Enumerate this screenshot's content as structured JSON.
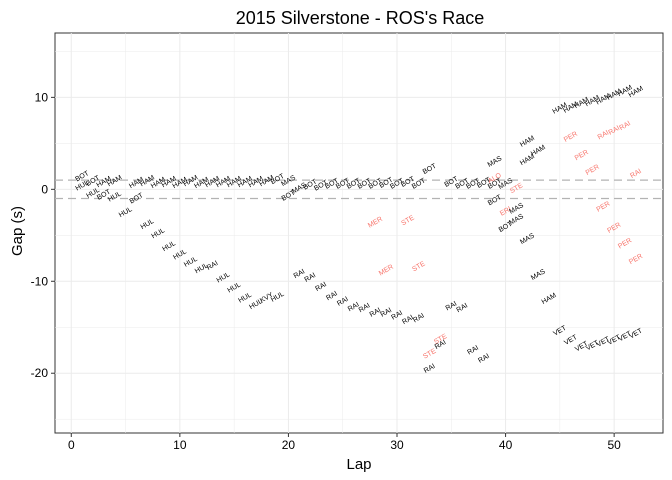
{
  "chart_data": {
    "type": "scatter",
    "title": "2015 Silverstone - ROS's Race",
    "xlabel": "Lap",
    "ylabel": "Gap (s)",
    "xlim": [
      -1.5,
      54.5
    ],
    "ylim": [
      -26.5,
      17
    ],
    "xticks": [
      0,
      10,
      20,
      30,
      40,
      50
    ],
    "yticks": [
      -20,
      -10,
      0,
      10
    ],
    "grid": true,
    "reference_lines": [
      1,
      -1
    ],
    "colors": {
      "normal": "#000000",
      "highlight": "#f8766d",
      "reference": "#b3b3b3",
      "grid": "#ebebeb"
    },
    "points": [
      {
        "x": 1,
        "y": 1.4,
        "label": "BOT",
        "highlight": false
      },
      {
        "x": 1,
        "y": 0.4,
        "label": "HUL",
        "highlight": false
      },
      {
        "x": 2,
        "y": 0.9,
        "label": "BOT",
        "highlight": false
      },
      {
        "x": 2,
        "y": -0.4,
        "label": "HUL",
        "highlight": false
      },
      {
        "x": 3,
        "y": 0.8,
        "label": "HAM",
        "highlight": false
      },
      {
        "x": 3,
        "y": -0.6,
        "label": "BOT",
        "highlight": false
      },
      {
        "x": 4,
        "y": 0.9,
        "label": "HAM",
        "highlight": false
      },
      {
        "x": 4,
        "y": -0.8,
        "label": "HUL",
        "highlight": false
      },
      {
        "x": 5,
        "y": -2.5,
        "label": "HUL",
        "highlight": false
      },
      {
        "x": 6,
        "y": 0.7,
        "label": "HAM",
        "highlight": false
      },
      {
        "x": 6,
        "y": -1,
        "label": "BOT",
        "highlight": false
      },
      {
        "x": 7,
        "y": 0.9,
        "label": "HAM",
        "highlight": false
      },
      {
        "x": 7,
        "y": -3.8,
        "label": "HUL",
        "highlight": false
      },
      {
        "x": 8,
        "y": 0.7,
        "label": "HAM",
        "highlight": false
      },
      {
        "x": 8,
        "y": -4.8,
        "label": "HUL",
        "highlight": false
      },
      {
        "x": 9,
        "y": 0.8,
        "label": "HAM",
        "highlight": false
      },
      {
        "x": 9,
        "y": -6.2,
        "label": "HUL",
        "highlight": false
      },
      {
        "x": 10,
        "y": 0.7,
        "label": "HAM",
        "highlight": false
      },
      {
        "x": 10,
        "y": -7.1,
        "label": "HUL",
        "highlight": false
      },
      {
        "x": 11,
        "y": 0.9,
        "label": "HAM",
        "highlight": false
      },
      {
        "x": 11,
        "y": -7.9,
        "label": "HUL",
        "highlight": false
      },
      {
        "x": 12,
        "y": 0.7,
        "label": "HAM",
        "highlight": false
      },
      {
        "x": 12,
        "y": -8.6,
        "label": "HUL",
        "highlight": false
      },
      {
        "x": 13,
        "y": 0.8,
        "label": "HAM",
        "highlight": false
      },
      {
        "x": 13,
        "y": -8.3,
        "label": "RAI",
        "highlight": false
      },
      {
        "x": 14,
        "y": 0.8,
        "label": "HAM",
        "highlight": false
      },
      {
        "x": 14,
        "y": -9.6,
        "label": "HUL",
        "highlight": false
      },
      {
        "x": 15,
        "y": 0.8,
        "label": "HAM",
        "highlight": false
      },
      {
        "x": 15,
        "y": -10.7,
        "label": "HUL",
        "highlight": false
      },
      {
        "x": 16,
        "y": 0.8,
        "label": "HAM",
        "highlight": false
      },
      {
        "x": 16,
        "y": -11.8,
        "label": "HUL",
        "highlight": false
      },
      {
        "x": 17,
        "y": 0.8,
        "label": "HAM",
        "highlight": false
      },
      {
        "x": 17,
        "y": -12.5,
        "label": "HUL",
        "highlight": false
      },
      {
        "x": 18,
        "y": 0.9,
        "label": "HAM",
        "highlight": false
      },
      {
        "x": 18,
        "y": -11.8,
        "label": "KVY",
        "highlight": false
      },
      {
        "x": 19,
        "y": 1.1,
        "label": "BOT",
        "highlight": false
      },
      {
        "x": 19,
        "y": -11.7,
        "label": "HUL",
        "highlight": false
      },
      {
        "x": 20,
        "y": 0.9,
        "label": "MAS",
        "highlight": false
      },
      {
        "x": 20,
        "y": -0.7,
        "label": "BOT",
        "highlight": false
      },
      {
        "x": 21,
        "y": 0.1,
        "label": "MAS",
        "highlight": false
      },
      {
        "x": 21,
        "y": -9.2,
        "label": "RAI",
        "highlight": false
      },
      {
        "x": 22,
        "y": 0.5,
        "label": "BOT",
        "highlight": false
      },
      {
        "x": 22,
        "y": -9.6,
        "label": "RAI",
        "highlight": false
      },
      {
        "x": 23,
        "y": 0.4,
        "label": "BOT",
        "highlight": false
      },
      {
        "x": 23,
        "y": -10.6,
        "label": "RAI",
        "highlight": false
      },
      {
        "x": 24,
        "y": 0.6,
        "label": "BOT",
        "highlight": false
      },
      {
        "x": 24,
        "y": -11.6,
        "label": "RAI",
        "highlight": false
      },
      {
        "x": 25,
        "y": 0.6,
        "label": "BOT",
        "highlight": false
      },
      {
        "x": 25,
        "y": -12.2,
        "label": "RAI",
        "highlight": false
      },
      {
        "x": 26,
        "y": 0.6,
        "label": "BOT",
        "highlight": false
      },
      {
        "x": 26,
        "y": -12.8,
        "label": "RAI",
        "highlight": false
      },
      {
        "x": 27,
        "y": 0.6,
        "label": "BOT",
        "highlight": false
      },
      {
        "x": 27,
        "y": -12.9,
        "label": "RAI",
        "highlight": false
      },
      {
        "x": 28,
        "y": 0.6,
        "label": "BOT",
        "highlight": false
      },
      {
        "x": 28,
        "y": -3.6,
        "label": "MER",
        "highlight": true
      },
      {
        "x": 28,
        "y": -13.4,
        "label": "RAI",
        "highlight": false
      },
      {
        "x": 29,
        "y": 0.7,
        "label": "BOT",
        "highlight": false
      },
      {
        "x": 29,
        "y": -8.8,
        "label": "MER",
        "highlight": true
      },
      {
        "x": 29,
        "y": -13.4,
        "label": "RAI",
        "highlight": false
      },
      {
        "x": 30,
        "y": 0.6,
        "label": "BOT",
        "highlight": false
      },
      {
        "x": 30,
        "y": -13.7,
        "label": "RAI",
        "highlight": false
      },
      {
        "x": 31,
        "y": 0.8,
        "label": "BOT",
        "highlight": false
      },
      {
        "x": 31,
        "y": -3.4,
        "label": "STE",
        "highlight": true
      },
      {
        "x": 31,
        "y": -14.2,
        "label": "RAI",
        "highlight": false
      },
      {
        "x": 32,
        "y": 0.6,
        "label": "BOT",
        "highlight": false
      },
      {
        "x": 32,
        "y": -8.4,
        "label": "STE",
        "highlight": true
      },
      {
        "x": 32,
        "y": -14,
        "label": "RAI",
        "highlight": false
      },
      {
        "x": 33,
        "y": 2.2,
        "label": "BOT",
        "highlight": false
      },
      {
        "x": 33,
        "y": -17.9,
        "label": "STE",
        "highlight": true
      },
      {
        "x": 33,
        "y": -19.5,
        "label": "RAI",
        "highlight": false
      },
      {
        "x": 34,
        "y": -16.3,
        "label": "STE",
        "highlight": true
      },
      {
        "x": 34,
        "y": -16.9,
        "label": "RAI",
        "highlight": false
      },
      {
        "x": 35,
        "y": 0.8,
        "label": "BOT",
        "highlight": false
      },
      {
        "x": 35,
        "y": -12.7,
        "label": "RAI",
        "highlight": false
      },
      {
        "x": 36,
        "y": 0.6,
        "label": "BOT",
        "highlight": false
      },
      {
        "x": 36,
        "y": -12.9,
        "label": "RAI",
        "highlight": false
      },
      {
        "x": 37,
        "y": 0.6,
        "label": "BOT",
        "highlight": false
      },
      {
        "x": 37,
        "y": -17.5,
        "label": "RAI",
        "highlight": false
      },
      {
        "x": 38,
        "y": 0.7,
        "label": "BOT",
        "highlight": false
      },
      {
        "x": 38,
        "y": -18.4,
        "label": "RAI",
        "highlight": false
      },
      {
        "x": 39,
        "y": 3,
        "label": "MAS",
        "highlight": false
      },
      {
        "x": 39,
        "y": 1.2,
        "label": "ALO",
        "highlight": true
      },
      {
        "x": 39,
        "y": 0.6,
        "label": "BOT",
        "highlight": false
      },
      {
        "x": 39,
        "y": -1.2,
        "label": "BOT",
        "highlight": false
      },
      {
        "x": 40,
        "y": 0.6,
        "label": "MAS",
        "highlight": false
      },
      {
        "x": 40,
        "y": -2.4,
        "label": "ERI",
        "highlight": true
      },
      {
        "x": 40,
        "y": -4.1,
        "label": "BOT",
        "highlight": false
      },
      {
        "x": 41,
        "y": 0.1,
        "label": "STE",
        "highlight": true
      },
      {
        "x": 41,
        "y": -2.1,
        "label": "MAS",
        "highlight": false
      },
      {
        "x": 41,
        "y": -3.3,
        "label": "MAS",
        "highlight": false
      },
      {
        "x": 42,
        "y": 5.2,
        "label": "HAM",
        "highlight": false
      },
      {
        "x": 42,
        "y": 3.2,
        "label": "HAM",
        "highlight": false
      },
      {
        "x": 42,
        "y": -5.4,
        "label": "MAS",
        "highlight": false
      },
      {
        "x": 43,
        "y": 4.2,
        "label": "HAM",
        "highlight": false
      },
      {
        "x": 43,
        "y": -9.3,
        "label": "MAS",
        "highlight": false
      },
      {
        "x": 44,
        "y": -11.9,
        "label": "HAM",
        "highlight": false
      },
      {
        "x": 45,
        "y": 8.8,
        "label": "HAM",
        "highlight": false
      },
      {
        "x": 45,
        "y": -15.4,
        "label": "VET",
        "highlight": false
      },
      {
        "x": 46,
        "y": 8.9,
        "label": "HAM",
        "highlight": false
      },
      {
        "x": 46,
        "y": 5.7,
        "label": "PER",
        "highlight": true
      },
      {
        "x": 46,
        "y": -16.4,
        "label": "VET",
        "highlight": false
      },
      {
        "x": 47,
        "y": 9.4,
        "label": "HAM",
        "highlight": false
      },
      {
        "x": 47,
        "y": 3.7,
        "label": "PER",
        "highlight": true
      },
      {
        "x": 47,
        "y": -17.1,
        "label": "VET",
        "highlight": false
      },
      {
        "x": 48,
        "y": 9.6,
        "label": "HAM",
        "highlight": false
      },
      {
        "x": 48,
        "y": 2.1,
        "label": "PER",
        "highlight": true
      },
      {
        "x": 48,
        "y": -17,
        "label": "VET",
        "highlight": false
      },
      {
        "x": 49,
        "y": 9.8,
        "label": "HAM",
        "highlight": false
      },
      {
        "x": 49,
        "y": 5.9,
        "label": "RAI",
        "highlight": true
      },
      {
        "x": 49,
        "y": -1.9,
        "label": "PER",
        "highlight": true
      },
      {
        "x": 49,
        "y": -16.6,
        "label": "VET",
        "highlight": false
      },
      {
        "x": 50,
        "y": 10.3,
        "label": "HAM",
        "highlight": false
      },
      {
        "x": 50,
        "y": 6.4,
        "label": "RAI",
        "highlight": true
      },
      {
        "x": 50,
        "y": -4.2,
        "label": "PER",
        "highlight": true
      },
      {
        "x": 50,
        "y": -16.4,
        "label": "VET",
        "highlight": false
      },
      {
        "x": 51,
        "y": 10.7,
        "label": "HAM",
        "highlight": false
      },
      {
        "x": 51,
        "y": 6.9,
        "label": "RAI",
        "highlight": true
      },
      {
        "x": 51,
        "y": -5.9,
        "label": "PER",
        "highlight": true
      },
      {
        "x": 51,
        "y": -16,
        "label": "VET",
        "highlight": false
      },
      {
        "x": 52,
        "y": 10.6,
        "label": "HAM",
        "highlight": false
      },
      {
        "x": 52,
        "y": 1.7,
        "label": "RAI",
        "highlight": true
      },
      {
        "x": 52,
        "y": -7.6,
        "label": "PER",
        "highlight": true
      },
      {
        "x": 52,
        "y": -15.7,
        "label": "VET",
        "highlight": false
      }
    ]
  }
}
